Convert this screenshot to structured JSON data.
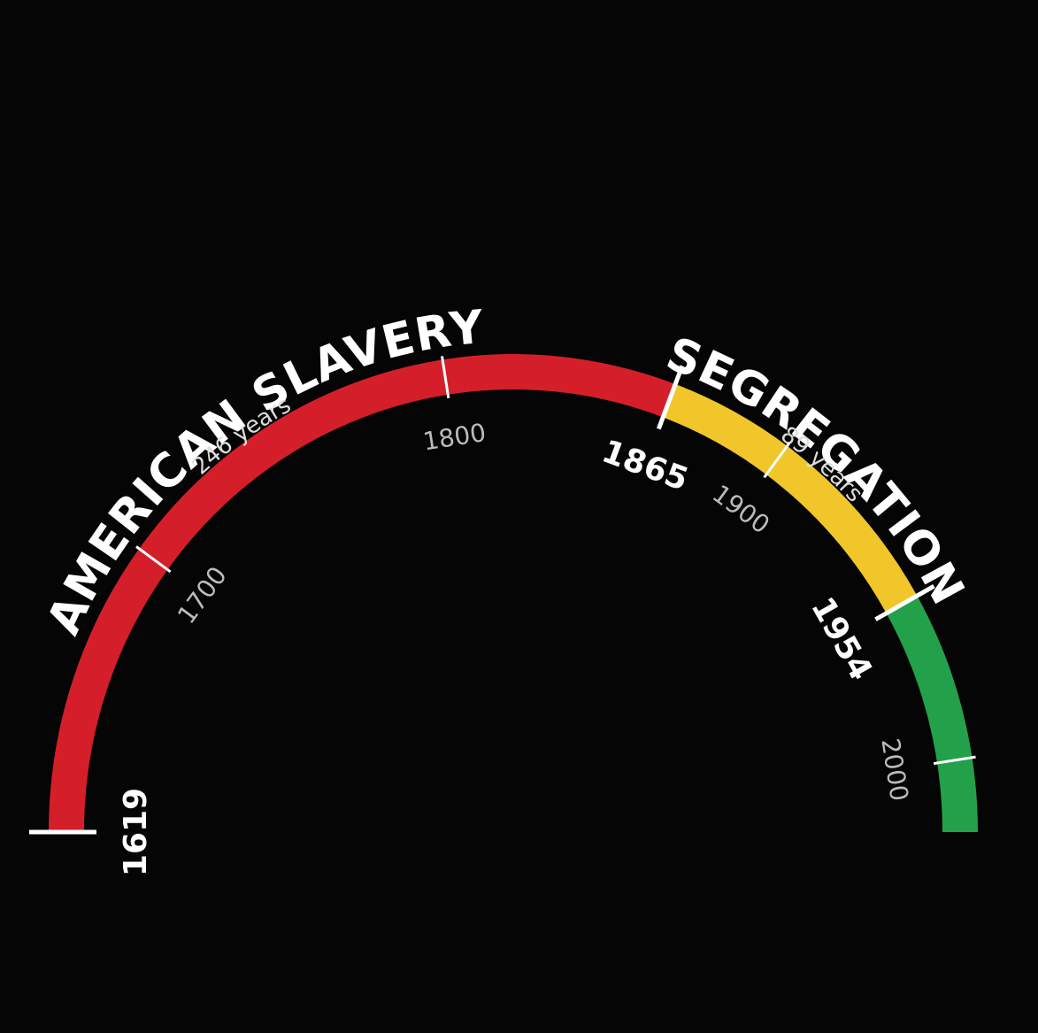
{
  "chart_data": {
    "type": "arc_timeline",
    "xlim": [
      1619,
      2020
    ],
    "xticks": [
      1700,
      1800,
      1900,
      2000
    ],
    "segments": [
      {
        "name": "AMERICAN SLAVERY",
        "duration": "246 years",
        "start": 1619,
        "end": 1865,
        "color": "#d41f2a"
      },
      {
        "name": "SEGREGATION",
        "duration": "89 years",
        "start": 1865,
        "end": 1954,
        "color": "#f1c62a"
      },
      {
        "start": 1954,
        "color": "#23a14a"
      }
    ]
  }
}
